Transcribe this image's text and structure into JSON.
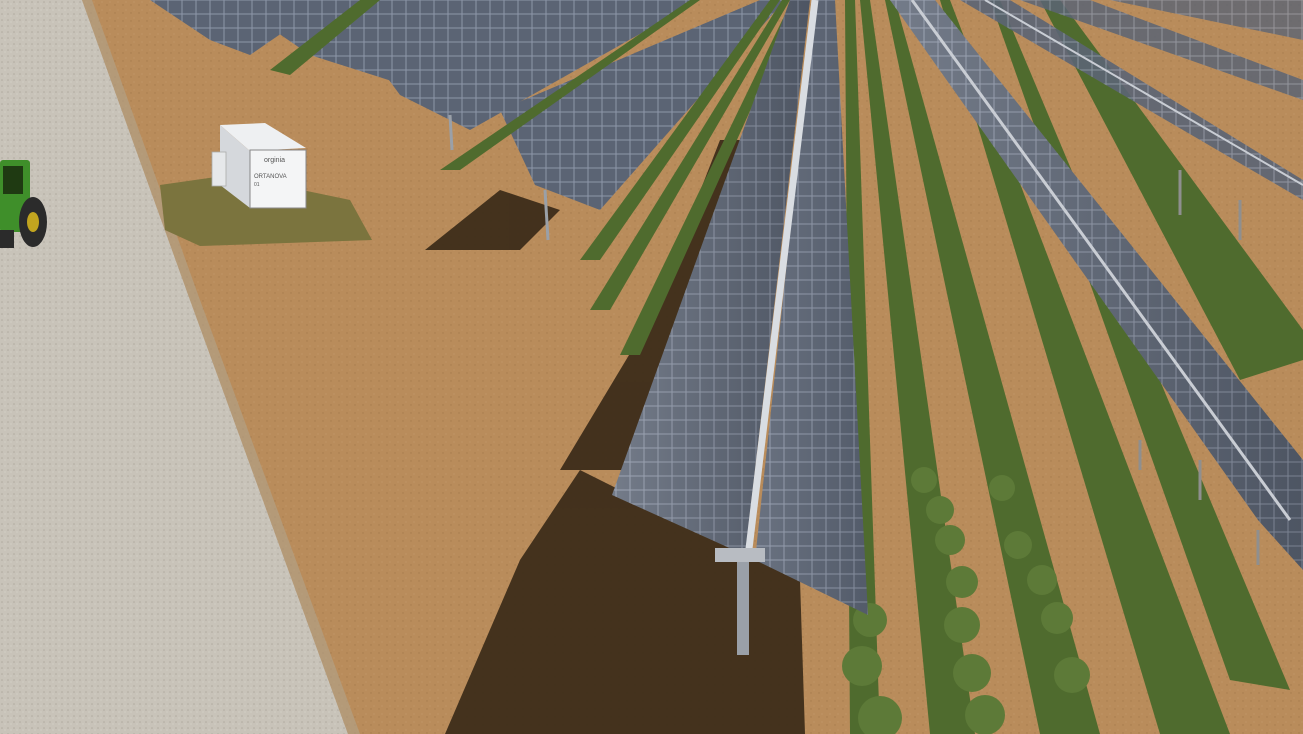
{
  "image": {
    "kind": "agrivoltaic solar farm rendering",
    "colors": {
      "soil": "#b98d5c",
      "road": "#c9c4ba",
      "panel": "#5a6272",
      "panel_light": "#8d96a8",
      "frame": "#c9cdd4",
      "crop": "#4f6b2e",
      "shadow": "#3a2a18",
      "tractor": "#3f8f2a"
    }
  },
  "container": {
    "logo_text": "orginia",
    "label": "ORTANOVA",
    "sublabel": "01"
  }
}
